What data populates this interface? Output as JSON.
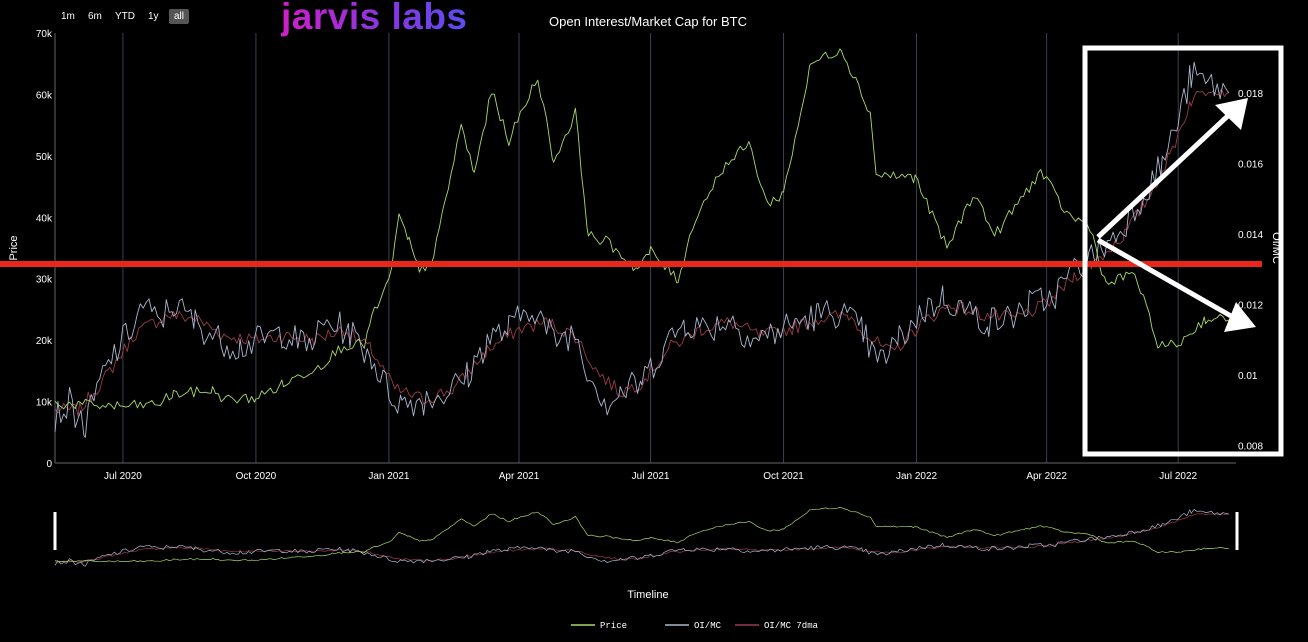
{
  "brand": {
    "logo_text": "jarvis labs"
  },
  "range_selector": {
    "buttons": [
      {
        "label": "1m",
        "active": false
      },
      {
        "label": "6m",
        "active": false
      },
      {
        "label": "YTD",
        "active": false
      },
      {
        "label": "1y",
        "active": false
      },
      {
        "label": "all",
        "active": true
      }
    ]
  },
  "chart_data": {
    "type": "line",
    "title": "Open Interest/Market Cap for BTC",
    "xlabel": "Timeline",
    "ylabel": "Price",
    "y2label": "OI/MC",
    "xlim": [
      "2020-05-15",
      "2022-08-10"
    ],
    "ylim": [
      0,
      70000
    ],
    "y2lim": [
      0.0075,
      0.0197
    ],
    "x_ticks": [
      "2020-07-01",
      "2020-10-01",
      "2021-01-01",
      "2021-04-01",
      "2021-07-01",
      "2021-10-01",
      "2022-01-01",
      "2022-04-01",
      "2022-07-01"
    ],
    "x_tick_labels": [
      "Jul 2020",
      "Oct 2020",
      "Jan 2021",
      "Apr 2021",
      "Jul 2021",
      "Oct 2021",
      "Jan 2022",
      "Apr 2022",
      "Jul 2022"
    ],
    "y_ticks": [
      0,
      10000,
      20000,
      30000,
      40000,
      50000,
      60000,
      70000
    ],
    "y_tick_labels": [
      "0",
      "10k",
      "20k",
      "30k",
      "40k",
      "50k",
      "60k",
      "70k"
    ],
    "y2_ticks": [
      0.008,
      0.01,
      0.012,
      0.014,
      0.016,
      0.018
    ],
    "y2_tick_labels": [
      "0.008",
      "0.01",
      "0.012",
      "0.014",
      "0.016",
      "0.018"
    ],
    "legend_position": "bottom-center",
    "grid": true,
    "series": [
      {
        "name": "Price",
        "axis": "y",
        "color": "#a8d96a",
        "points": [
          [
            "2020-05-15",
            9700
          ],
          [
            "2020-06-01",
            9500
          ],
          [
            "2020-07-01",
            9200
          ],
          [
            "2020-07-25",
            9600
          ],
          [
            "2020-08-05",
            11200
          ],
          [
            "2020-09-01",
            11800
          ],
          [
            "2020-09-10",
            10300
          ],
          [
            "2020-10-01",
            10600
          ],
          [
            "2020-10-20",
            12800
          ],
          [
            "2020-11-15",
            16000
          ],
          [
            "2020-12-01",
            19200
          ],
          [
            "2020-12-15",
            19300
          ],
          [
            "2020-12-20",
            23500
          ],
          [
            "2021-01-01",
            29500
          ],
          [
            "2021-01-08",
            40000
          ],
          [
            "2021-01-15",
            36000
          ],
          [
            "2021-01-22",
            31000
          ],
          [
            "2021-02-01",
            33500
          ],
          [
            "2021-02-20",
            55000
          ],
          [
            "2021-03-01",
            47000
          ],
          [
            "2021-03-13",
            60500
          ],
          [
            "2021-03-25",
            52500
          ],
          [
            "2021-04-14",
            63000
          ],
          [
            "2021-04-25",
            49000
          ],
          [
            "2021-05-10",
            57000
          ],
          [
            "2021-05-19",
            37000
          ],
          [
            "2021-06-01",
            36000
          ],
          [
            "2021-06-22",
            31500
          ],
          [
            "2021-07-01",
            34500
          ],
          [
            "2021-07-20",
            29800
          ],
          [
            "2021-08-01",
            40000
          ],
          [
            "2021-08-20",
            48000
          ],
          [
            "2021-09-07",
            52000
          ],
          [
            "2021-09-20",
            42000
          ],
          [
            "2021-10-01",
            44000
          ],
          [
            "2021-10-20",
            65000
          ],
          [
            "2021-11-10",
            67500
          ],
          [
            "2021-11-30",
            57000
          ],
          [
            "2021-12-04",
            47000
          ],
          [
            "2021-12-31",
            46500
          ],
          [
            "2022-01-22",
            35000
          ],
          [
            "2022-02-10",
            44000
          ],
          [
            "2022-02-24",
            37000
          ],
          [
            "2022-03-28",
            47500
          ],
          [
            "2022-04-15",
            40500
          ],
          [
            "2022-05-01",
            38500
          ],
          [
            "2022-05-12",
            29000
          ],
          [
            "2022-06-01",
            31000
          ],
          [
            "2022-06-13",
            22000
          ],
          [
            "2022-06-18",
            19000
          ],
          [
            "2022-07-01",
            19300
          ],
          [
            "2022-07-20",
            23500
          ],
          [
            "2022-08-05",
            23300
          ]
        ]
      },
      {
        "name": "OI/MC",
        "axis": "y2",
        "color": "#a9b7cf",
        "points": [
          [
            "2020-05-15",
            0.0088
          ],
          [
            "2020-05-25",
            0.0092
          ],
          [
            "2020-06-05",
            0.0085
          ],
          [
            "2020-06-15",
            0.0098
          ],
          [
            "2020-06-25",
            0.0106
          ],
          [
            "2020-07-05",
            0.0112
          ],
          [
            "2020-07-15",
            0.012
          ],
          [
            "2020-07-25",
            0.0115
          ],
          [
            "2020-08-05",
            0.012
          ],
          [
            "2020-08-20",
            0.0115
          ],
          [
            "2020-09-05",
            0.011
          ],
          [
            "2020-09-20",
            0.0108
          ],
          [
            "2020-10-05",
            0.011
          ],
          [
            "2020-10-20",
            0.0112
          ],
          [
            "2020-11-05",
            0.0108
          ],
          [
            "2020-11-20",
            0.0115
          ],
          [
            "2020-12-05",
            0.0112
          ],
          [
            "2020-12-20",
            0.0105
          ],
          [
            "2021-01-01",
            0.0095
          ],
          [
            "2021-01-10",
            0.0092
          ],
          [
            "2021-01-25",
            0.0093
          ],
          [
            "2021-02-10",
            0.0095
          ],
          [
            "2021-02-25",
            0.01
          ],
          [
            "2021-03-10",
            0.011
          ],
          [
            "2021-03-25",
            0.0113
          ],
          [
            "2021-04-10",
            0.012
          ],
          [
            "2021-04-25",
            0.011
          ],
          [
            "2021-05-10",
            0.0112
          ],
          [
            "2021-05-20",
            0.01
          ],
          [
            "2021-06-01",
            0.0092
          ],
          [
            "2021-06-10",
            0.0095
          ],
          [
            "2021-06-25",
            0.0098
          ],
          [
            "2021-07-10",
            0.0108
          ],
          [
            "2021-07-25",
            0.0115
          ],
          [
            "2021-08-10",
            0.0113
          ],
          [
            "2021-08-25",
            0.0116
          ],
          [
            "2021-09-10",
            0.011
          ],
          [
            "2021-09-25",
            0.0112
          ],
          [
            "2021-10-10",
            0.0115
          ],
          [
            "2021-10-25",
            0.0117
          ],
          [
            "2021-11-10",
            0.0118
          ],
          [
            "2021-11-25",
            0.0112
          ],
          [
            "2021-12-05",
            0.0103
          ],
          [
            "2021-12-20",
            0.011
          ],
          [
            "2022-01-05",
            0.0118
          ],
          [
            "2022-01-20",
            0.0122
          ],
          [
            "2022-02-05",
            0.0118
          ],
          [
            "2022-02-20",
            0.0115
          ],
          [
            "2022-03-05",
            0.0116
          ],
          [
            "2022-03-20",
            0.012
          ],
          [
            "2022-04-05",
            0.0122
          ],
          [
            "2022-04-20",
            0.013
          ],
          [
            "2022-05-05",
            0.0134
          ],
          [
            "2022-05-20",
            0.014
          ],
          [
            "2022-06-05",
            0.015
          ],
          [
            "2022-06-20",
            0.016
          ],
          [
            "2022-07-01",
            0.0172
          ],
          [
            "2022-07-10",
            0.0185
          ],
          [
            "2022-07-20",
            0.0183
          ],
          [
            "2022-08-05",
            0.018
          ]
        ]
      },
      {
        "name": "OI/MC 7dma",
        "axis": "y2",
        "color": "#9b3b4a",
        "points": [
          [
            "2020-05-15",
            0.009
          ],
          [
            "2020-06-01",
            0.009
          ],
          [
            "2020-06-20",
            0.01
          ],
          [
            "2020-07-10",
            0.0112
          ],
          [
            "2020-08-01",
            0.0117
          ],
          [
            "2020-08-20",
            0.0116
          ],
          [
            "2020-09-10",
            0.0111
          ],
          [
            "2020-10-01",
            0.011
          ],
          [
            "2020-10-20",
            0.0111
          ],
          [
            "2020-11-10",
            0.011
          ],
          [
            "2020-12-01",
            0.0113
          ],
          [
            "2020-12-20",
            0.0107
          ],
          [
            "2021-01-05",
            0.0096
          ],
          [
            "2021-01-25",
            0.0093
          ],
          [
            "2021-02-15",
            0.0096
          ],
          [
            "2021-03-10",
            0.0107
          ],
          [
            "2021-04-01",
            0.0113
          ],
          [
            "2021-04-20",
            0.0115
          ],
          [
            "2021-05-10",
            0.0111
          ],
          [
            "2021-05-25",
            0.0101
          ],
          [
            "2021-06-10",
            0.0095
          ],
          [
            "2021-06-25",
            0.0098
          ],
          [
            "2021-07-15",
            0.0108
          ],
          [
            "2021-08-05",
            0.0113
          ],
          [
            "2021-08-25",
            0.0115
          ],
          [
            "2021-09-15",
            0.0111
          ],
          [
            "2021-10-05",
            0.0113
          ],
          [
            "2021-10-25",
            0.0116
          ],
          [
            "2021-11-15",
            0.0117
          ],
          [
            "2021-12-01",
            0.011
          ],
          [
            "2021-12-15",
            0.0106
          ],
          [
            "2022-01-05",
            0.0115
          ],
          [
            "2022-01-25",
            0.012
          ],
          [
            "2022-02-15",
            0.0117
          ],
          [
            "2022-03-10",
            0.0116
          ],
          [
            "2022-04-01",
            0.012
          ],
          [
            "2022-04-20",
            0.0128
          ],
          [
            "2022-05-10",
            0.0134
          ],
          [
            "2022-05-25",
            0.014
          ],
          [
            "2022-06-10",
            0.015
          ],
          [
            "2022-06-25",
            0.0162
          ],
          [
            "2022-07-10",
            0.0178
          ],
          [
            "2022-07-25",
            0.0182
          ],
          [
            "2022-08-05",
            0.018
          ]
        ]
      }
    ]
  }
}
